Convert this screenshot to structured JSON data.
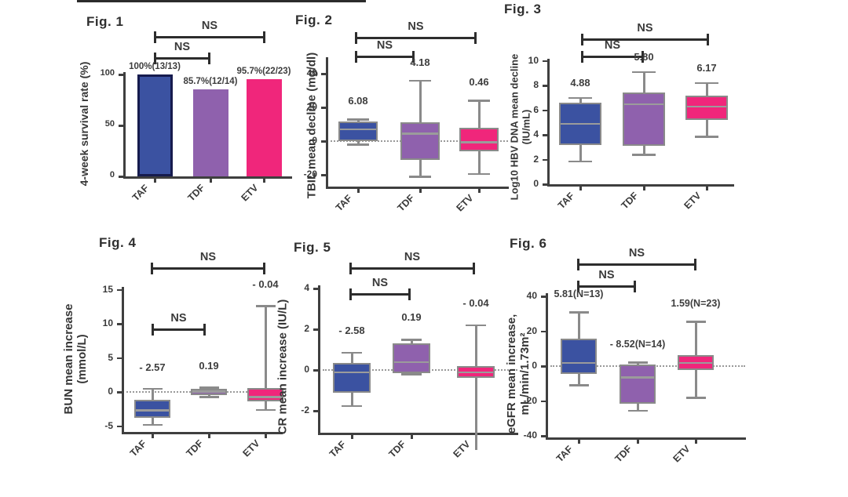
{
  "palette": {
    "taf_fill": "#3b52a1",
    "tdf_fill": "#8f61ad",
    "etv_fill": "#f0267b",
    "taf_bar_border": "#161b4e",
    "box_stroke": "#8a8a8a",
    "median_stroke": "#9b9b9b",
    "axis": "#3f3f3f",
    "bracket": "#2d2d2d",
    "dotted_baseline": "#999999",
    "text": "#3a3a3a"
  },
  "chart_data": [
    {
      "id": "fig1",
      "title": "Fig. 1",
      "type": "bar",
      "ylabel_lines": [
        "4-week survival rate (%)"
      ],
      "yticks": [
        0,
        50,
        100
      ],
      "ylim": [
        0,
        105
      ],
      "categories": [
        "TAF",
        "TDF",
        "ETV"
      ],
      "values": [
        100,
        85.7,
        95.7
      ],
      "annotations": [
        "100%(13/13)",
        "85.7%(12/14)",
        "95.7%(22/23)"
      ],
      "comparisons": [
        {
          "between": [
            "TAF",
            "ETV"
          ],
          "label": "NS"
        },
        {
          "between": [
            "TAF",
            "TDF"
          ],
          "label": "NS"
        }
      ],
      "zero_line": false
    },
    {
      "id": "fig2",
      "title": "Fig. 2",
      "type": "box",
      "ylabel_lines": [
        "TBIL mean decline (mg/dl)"
      ],
      "yticks": [
        -20,
        0,
        20,
        40
      ],
      "ylim": [
        -27,
        50
      ],
      "categories": [
        "TAF",
        "TDF",
        "ETV"
      ],
      "series": [
        {
          "name": "TAF",
          "annotation": "6.08",
          "lo": -2,
          "q1": 0,
          "median": 7,
          "q3": 11.5,
          "hi": 13
        },
        {
          "name": "TDF",
          "annotation": "4.18",
          "lo": -21,
          "q1": -11,
          "median": 4.5,
          "q3": 11,
          "hi": 36
        },
        {
          "name": "ETV",
          "annotation": "0.46",
          "lo": -19.5,
          "q1": -6,
          "median": -0.5,
          "q3": 8,
          "hi": 24
        }
      ],
      "comparisons": [
        {
          "between": [
            "TAF",
            "ETV"
          ],
          "label": "NS"
        },
        {
          "between": [
            "TAF",
            "TDF"
          ],
          "label": "NS"
        }
      ],
      "zero_line": true
    },
    {
      "id": "fig3",
      "title": "Fig. 3",
      "type": "box",
      "ylabel_lines": [
        "Log10 HBV DNA mean decline",
        "(IU/mL)"
      ],
      "yticks": [
        0,
        2,
        4,
        6,
        8,
        10
      ],
      "ylim": [
        0,
        10.2
      ],
      "categories": [
        "TAF",
        "TDF",
        "ETV"
      ],
      "series": [
        {
          "name": "TAF",
          "annotation": "4.88",
          "lo": 1.85,
          "q1": 3.2,
          "median": 4.9,
          "q3": 6.6,
          "hi": 7.0
        },
        {
          "name": "TDF",
          "annotation": "5.80",
          "lo": 2.4,
          "q1": 3.1,
          "median": 6.5,
          "q3": 7.4,
          "hi": 9.1
        },
        {
          "name": "ETV",
          "annotation": "6.17",
          "lo": 3.85,
          "q1": 5.2,
          "median": 6.3,
          "q3": 7.2,
          "hi": 8.2
        }
      ],
      "comparisons": [
        {
          "between": [
            "TAF",
            "ETV"
          ],
          "label": "NS"
        },
        {
          "between": [
            "TAF",
            "TDF"
          ],
          "label": "NS"
        }
      ],
      "zero_line": false
    },
    {
      "id": "fig4",
      "title": "Fig. 4",
      "type": "box",
      "ylabel_lines": [
        "BUN mean increase",
        "(mmol/L)"
      ],
      "yticks": [
        -5,
        0,
        5,
        10,
        15
      ],
      "ylim": [
        -5.8,
        15.5
      ],
      "categories": [
        "TAF",
        "TDF",
        "ETV"
      ],
      "series": [
        {
          "name": "TAF",
          "annotation": "- 2.57",
          "lo": -4.8,
          "q1": -3.8,
          "median": -2.7,
          "q3": -1.2,
          "hi": 0.5
        },
        {
          "name": "TDF",
          "annotation": "0.19",
          "lo": -0.7,
          "q1": -0.5,
          "median": 0.1,
          "q3": 0.5,
          "hi": 0.65
        },
        {
          "name": "ETV",
          "annotation": "- 0.04",
          "lo": -2.6,
          "q1": -1.4,
          "median": -0.7,
          "q3": 0.55,
          "hi": 12.6
        }
      ],
      "comparisons": [
        {
          "between": [
            "TAF",
            "ETV"
          ],
          "label": "NS"
        },
        {
          "between": [
            "TAF",
            "TDF"
          ],
          "label": "NS"
        }
      ],
      "zero_line": true
    },
    {
      "id": "fig5",
      "title": "Fig. 5",
      "type": "box",
      "ylabel_lines": [
        "CR mean increase (IU/L)"
      ],
      "yticks": [
        -2,
        0,
        2,
        4
      ],
      "ylim": [
        -3.1,
        4.2
      ],
      "categories": [
        "TAF",
        "TDF",
        "ETV"
      ],
      "series": [
        {
          "name": "TAF",
          "annotation": "- 2.58",
          "lo": -1.75,
          "q1": -1.1,
          "median": -0.1,
          "q3": 0.35,
          "hi": 0.85
        },
        {
          "name": "TDF",
          "annotation": "0.19",
          "lo": -0.2,
          "q1": -0.15,
          "median": 0.4,
          "q3": 1.3,
          "hi": 1.5
        },
        {
          "name": "ETV",
          "annotation": "- 0.04",
          "lo": null,
          "q1": -0.4,
          "median": -0.1,
          "q3": 0.2,
          "hi": 2.2,
          "lo_note": "lower whisker extends below visible axis (clipped)"
        }
      ],
      "comparisons": [
        {
          "between": [
            "TAF",
            "ETV"
          ],
          "label": "NS"
        },
        {
          "between": [
            "TAF",
            "TDF"
          ],
          "label": "NS"
        }
      ],
      "zero_line": true
    },
    {
      "id": "fig6",
      "title": "Fig. 6",
      "type": "box",
      "ylabel_lines": [
        "eGFR mean increase,",
        "mL/min/1.73m²"
      ],
      "yticks": [
        -40,
        -20,
        0,
        20,
        40
      ],
      "ylim": [
        -40,
        42
      ],
      "categories": [
        "TAF",
        "TDF",
        "ETV"
      ],
      "series": [
        {
          "name": "TAF",
          "annotation": "5.81(N=13)",
          "lo": -11,
          "q1": -4.5,
          "median": 1.8,
          "q3": 15.7,
          "hi": 31
        },
        {
          "name": "TDF",
          "annotation": "- 8.52(N=14)",
          "lo": -25.5,
          "q1": -21.5,
          "median": -6.3,
          "q3": 0.9,
          "hi": 2.2
        },
        {
          "name": "ETV",
          "annotation": "1.59(N=23)",
          "lo": -18,
          "q1": -2.2,
          "median": 1.8,
          "q3": 6.3,
          "hi": 25.6
        }
      ],
      "comparisons": [
        {
          "between": [
            "TAF",
            "ETV"
          ],
          "label": "NS"
        },
        {
          "between": [
            "TAF",
            "TDF"
          ],
          "label": "NS"
        }
      ],
      "zero_line": true
    }
  ]
}
